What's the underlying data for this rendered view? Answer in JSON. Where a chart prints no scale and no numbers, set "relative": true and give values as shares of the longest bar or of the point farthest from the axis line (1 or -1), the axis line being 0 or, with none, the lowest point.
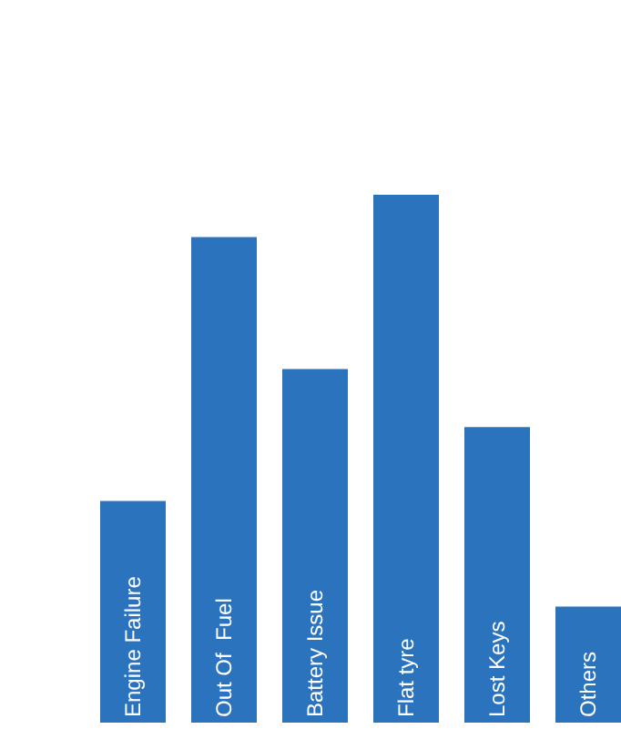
{
  "chart_data": {
    "type": "bar",
    "categories": [
      "Engine Failure",
      "Out Of  Fuel",
      "Battery Issue",
      "Flat tyre",
      "Lost Keys",
      "Others"
    ],
    "values": [
      0.42,
      0.92,
      0.67,
      1,
      0.56,
      0.22
    ],
    "color": "#2b74bd",
    "relative": true,
    "tick_labels": false
  }
}
